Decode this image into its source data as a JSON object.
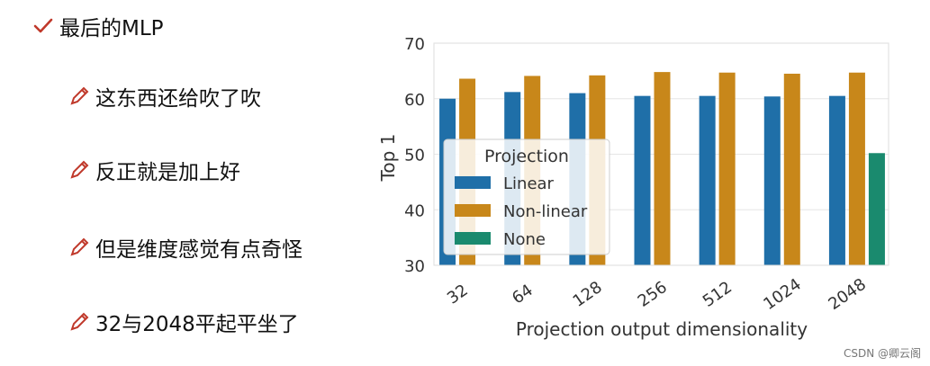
{
  "slide": {
    "main_bullet": "最后的MLP",
    "sub_bullets": [
      "这东西还给吹了吹",
      "反正就是加上好",
      "但是维度感觉有点奇怪",
      "32与2048平起平坐了"
    ],
    "watermark": "CSDN @卿云阁",
    "colors": {
      "check": "#c0392b",
      "pencil": "#c0392b"
    }
  },
  "chart_data": {
    "type": "bar",
    "categories": [
      "32",
      "64",
      "128",
      "256",
      "512",
      "1024",
      "2048"
    ],
    "series": [
      {
        "name": "Linear",
        "color": "#1f6fa8",
        "values": [
          60,
          61.2,
          61,
          60.5,
          60.5,
          60.4,
          60.5
        ]
      },
      {
        "name": "Non-linear",
        "color": "#c8871a",
        "values": [
          63.6,
          64.1,
          64.2,
          64.8,
          64.7,
          64.5,
          64.7
        ]
      },
      {
        "name": "None",
        "color": "#1a8a6e",
        "values": [
          null,
          null,
          null,
          null,
          null,
          null,
          50.2
        ]
      }
    ],
    "xlabel": "Projection output dimensionality",
    "ylabel": "Top 1",
    "ylim": [
      30,
      70
    ],
    "yticks": [
      30,
      40,
      50,
      60,
      70
    ],
    "grid": true,
    "legend": {
      "title": "Projection",
      "placement": "center-left"
    }
  }
}
